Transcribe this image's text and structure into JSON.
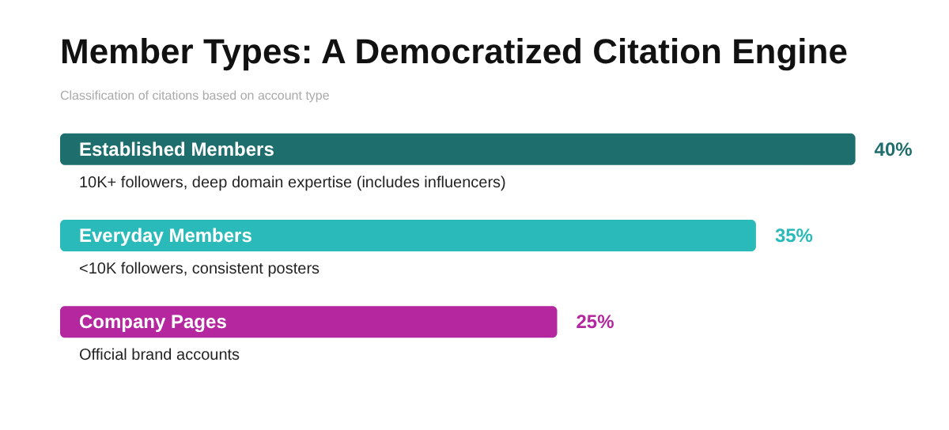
{
  "chart_data": {
    "type": "bar",
    "orientation": "horizontal",
    "title": "Member Types: A Democratized Citation Engine",
    "subtitle": "Classification of citations based on account type",
    "categories": [
      "Established Members",
      "Everyday Members",
      "Company Pages"
    ],
    "values": [
      40,
      35,
      25
    ],
    "colors": [
      "#1f6e6e",
      "#2bbaba",
      "#b4279f"
    ],
    "value_labels": [
      "40%",
      "35%",
      "25%"
    ],
    "annotations": [
      "10K+ followers, deep domain expertise (includes influencers)",
      "<10K followers, consistent posters",
      "Official brand accounts"
    ]
  }
}
